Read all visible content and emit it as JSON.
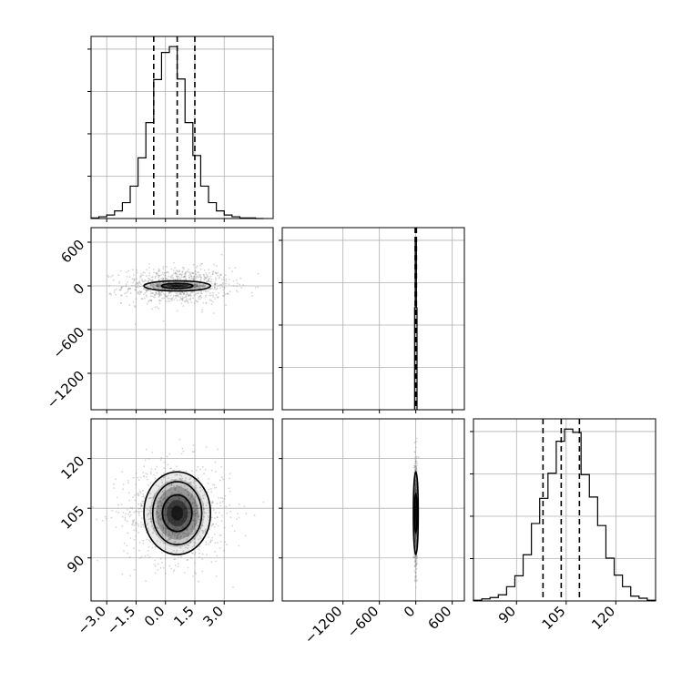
{
  "chart_data": {
    "type": "corner",
    "parameters": [
      "",
      "",
      ""
    ],
    "colors": {
      "line": "#000000",
      "grid": "#b0b0b0",
      "fill": "#7a7a7a",
      "points": "#888888"
    },
    "grid": true,
    "marginals": [
      {
        "param": 0,
        "range": [
          -3.8,
          5.5
        ],
        "bin_edges": [
          -3.8,
          -3.4,
          -3.0,
          -2.6,
          -2.2,
          -1.8,
          -1.4,
          -1.0,
          -0.6,
          -0.2,
          0.2,
          0.6,
          1.0,
          1.4,
          1.8,
          2.2,
          2.6,
          3.0,
          3.4,
          3.8,
          4.2,
          4.6,
          5.0
        ],
        "counts": [
          1,
          3,
          6,
          13,
          27,
          55,
          103,
          163,
          236,
          282,
          292,
          237,
          163,
          107,
          55,
          27,
          13,
          6,
          3,
          1,
          1,
          0
        ],
        "ymax": 300,
        "quantiles": [
          -0.6,
          0.6,
          1.5
        ]
      },
      {
        "param": 1,
        "range": [
          -2200,
          800
        ],
        "bin_edges": [
          -20,
          -10,
          0,
          10,
          20
        ],
        "counts": [
          150,
          250,
          250,
          150
        ],
        "ymax": 260,
        "quantiles": [
          -10,
          0,
          10
        ]
      },
      {
        "param": 2,
        "range": [
          77,
          132
        ],
        "bin_edges": [
          77,
          79.5,
          82,
          84.5,
          87,
          89.5,
          92,
          94.5,
          97,
          99.5,
          102,
          104.5,
          107,
          109.5,
          112,
          114.5,
          117,
          119.5,
          122,
          124.5,
          127,
          129.5,
          132
        ],
        "counts": [
          1,
          3,
          5,
          9,
          21,
          37,
          68,
          114,
          151,
          188,
          235,
          253,
          248,
          186,
          153,
          111,
          63,
          38,
          21,
          7,
          4,
          1
        ],
        "ymax": 260,
        "quantiles": [
          98,
          103.5,
          109
        ]
      }
    ],
    "pairs": [
      {
        "x_param": 0,
        "y_param": 1,
        "xlim": [
          -3.8,
          5.5
        ],
        "ylim": [
          -1700,
          800
        ],
        "center": [
          0.6,
          0
        ],
        "spread": [
          1.1,
          100
        ],
        "contours": [
          {
            "half_width": [
              1.7,
              70
            ]
          },
          {
            "half_width": [
              0.8,
              35
            ]
          }
        ]
      },
      {
        "x_param": 0,
        "y_param": 2,
        "xlim": [
          -3.8,
          5.5
        ],
        "ylim": [
          77,
          132
        ],
        "center": [
          0.6,
          103.5
        ],
        "spread": [
          1.1,
          6.2
        ],
        "contours": [
          {
            "half_width": [
              1.7,
              12.5
            ]
          },
          {
            "half_width": [
              1.25,
              9.5
            ]
          },
          {
            "half_width": [
              0.75,
              5.5
            ]
          }
        ]
      },
      {
        "x_param": 1,
        "y_param": 2,
        "xlim": [
          -2200,
          800
        ],
        "ylim": [
          77,
          132
        ],
        "center": [
          0,
          103.5
        ],
        "spread": [
          10,
          6.2
        ],
        "contours": [
          {
            "half_width": [
              40,
              12.5
            ]
          },
          {
            "half_width": [
              20,
              6
            ]
          }
        ]
      }
    ],
    "axes": {
      "x0_ticks": [
        -3.0,
        -1.5,
        0.0,
        1.5,
        3.0
      ],
      "x0_tick_labels": [
        "−3.0",
        "−1.5",
        "0.0",
        "1.5",
        "3.0"
      ],
      "x1_ticks": [
        -1200,
        -600,
        0,
        600
      ],
      "x1_tick_labels": [
        "−1200",
        "−600",
        "0",
        "600"
      ],
      "x2_ticks": [
        90,
        105,
        120
      ],
      "x2_tick_labels": [
        "90",
        "105",
        "120"
      ],
      "y1_ticks": [
        600,
        0,
        -600,
        -1200
      ],
      "y1_tick_labels": [
        "600",
        "0",
        "−600",
        "−1200"
      ],
      "y2_ticks": [
        120,
        105,
        90
      ],
      "y2_tick_labels": [
        "120",
        "105",
        "90"
      ]
    }
  }
}
